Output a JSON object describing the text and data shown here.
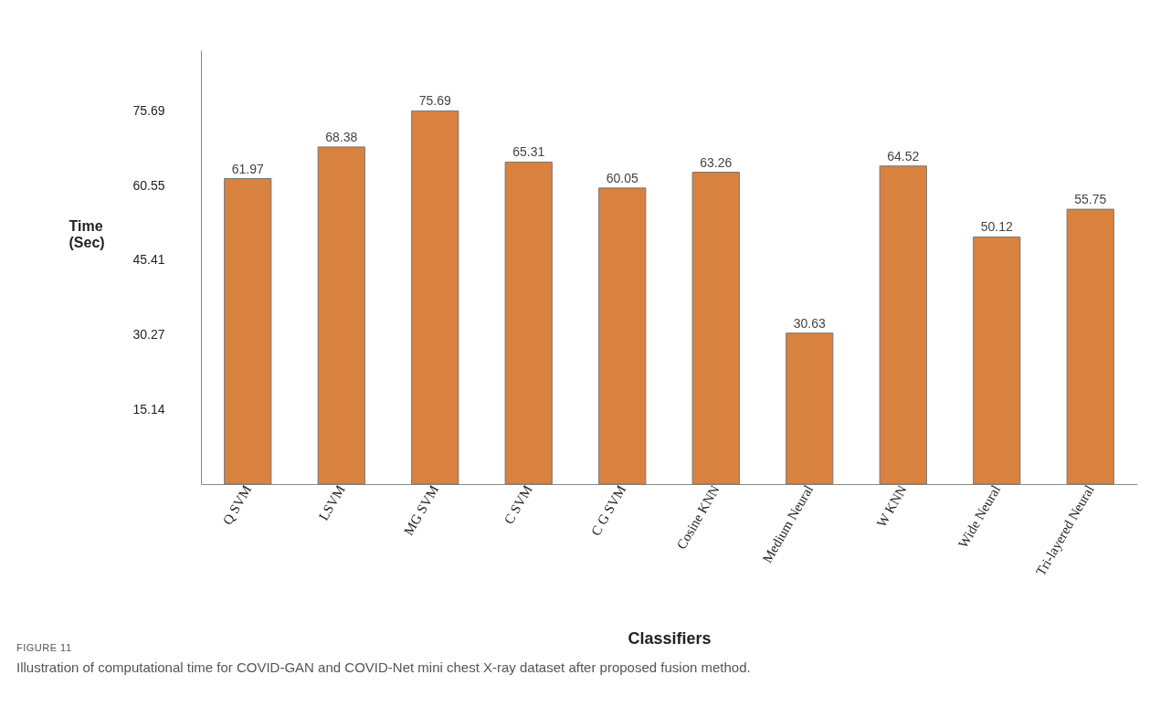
{
  "chart_data": {
    "type": "bar",
    "xlabel": "Classifiers",
    "ylabel": "Time (Sec)",
    "categories": [
      "Q SVM",
      "LSVM",
      "MG SVM",
      "C SVM",
      "C G SVM",
      "Cosine KNN",
      "Medium Neural",
      "W KNN",
      "Wide Neural",
      "Tri-layered Neural"
    ],
    "values": [
      61.97,
      68.38,
      75.69,
      65.31,
      60.05,
      63.26,
      30.63,
      64.52,
      50.12,
      55.75
    ],
    "color": "#d9823f",
    "ylim": [
      0,
      88
    ],
    "yticks": [
      15.14,
      30.27,
      45.41,
      60.55,
      75.69
    ],
    "grid": false,
    "data_labels": true,
    "annotations": [
      "FIGURE 11",
      "Illustration of computational time for COVID-GAN and COVID-Net mini chest X-ray dataset after proposed fusion method."
    ]
  }
}
